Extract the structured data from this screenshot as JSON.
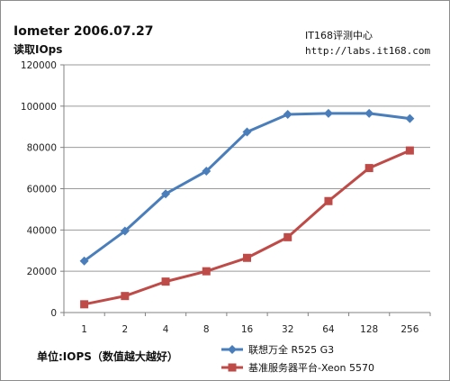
{
  "header": {
    "title": "Iometer 2006.07.27",
    "subtitle": "读取IOps",
    "source_name": "IT168评测中心",
    "source_url": "http://labs.it168.com"
  },
  "footer": {
    "unit_note": "单位:IOPS（数值越大越好）"
  },
  "colors": {
    "series_1": "#4a7ebb",
    "series_2": "#be4b48",
    "grid": "#9a9a9a"
  },
  "chart_data": {
    "type": "line",
    "title": "",
    "xlabel": "",
    "ylabel": "",
    "categories": [
      "1",
      "2",
      "4",
      "8",
      "16",
      "32",
      "64",
      "128",
      "256"
    ],
    "ylim": [
      0,
      120000
    ],
    "yticks": [
      "0",
      "20000",
      "40000",
      "60000",
      "80000",
      "100000",
      "120000"
    ],
    "grid": true,
    "legend_position": "bottom-right",
    "series": [
      {
        "name": "联想万全 R525 G3",
        "marker": "diamond",
        "values": [
          25000,
          39500,
          57500,
          68500,
          87500,
          96000,
          96500,
          96500,
          94000
        ]
      },
      {
        "name": "基准服务器平台-Xeon 5570",
        "marker": "square",
        "values": [
          4000,
          8000,
          15000,
          20000,
          26500,
          36500,
          54000,
          70000,
          78500
        ]
      }
    ]
  }
}
